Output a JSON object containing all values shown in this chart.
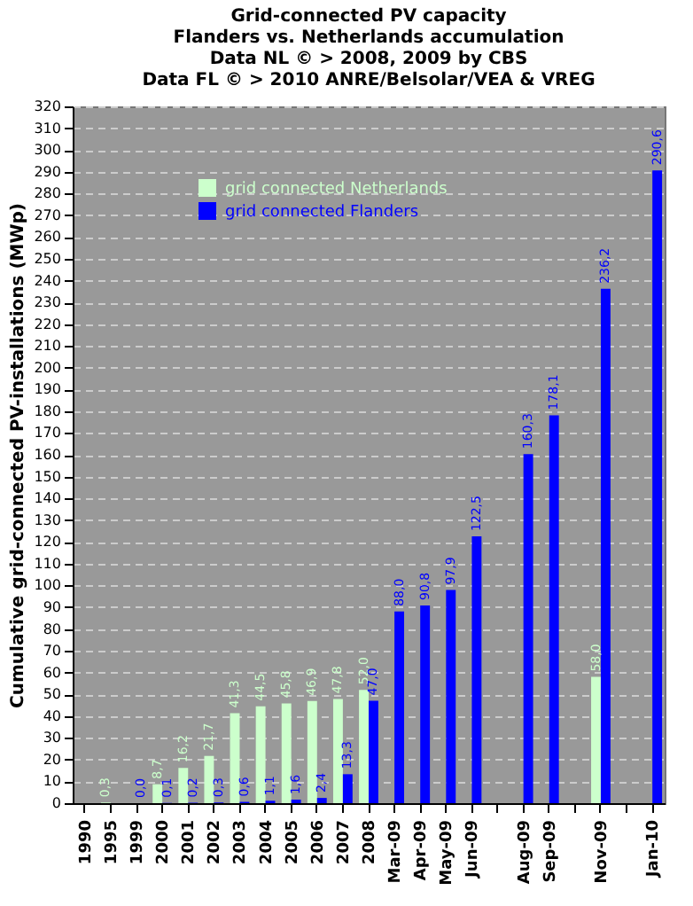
{
  "chart_data": {
    "type": "bar",
    "title": [
      "Grid-connected PV capacity",
      "Flanders vs. Netherlands accumulation",
      "Data NL © > 2008, 2009 by CBS",
      "Data FL © > 2010 ANRE/Belsolar/VEA & VREG"
    ],
    "ylabel": "Cumulative grid-connected PV-installations (MWp)",
    "categories": [
      "1990",
      "1995",
      "1999",
      "2000",
      "2001",
      "2002",
      "2003",
      "2004",
      "2005",
      "2006",
      "2007",
      "2008",
      "Mar-09",
      "Apr-09",
      "May-09",
      "Jun-09",
      null,
      "Aug-09",
      "Sep-09",
      null,
      "Nov-09",
      null,
      "Jan-10"
    ],
    "series": [
      {
        "name": "grid connected Netherlands",
        "color": "#ccffcc",
        "values": [
          null,
          0.3,
          null,
          8.7,
          16.2,
          21.7,
          41.3,
          44.5,
          45.8,
          46.9,
          47.8,
          52.0,
          null,
          null,
          null,
          null,
          null,
          null,
          null,
          null,
          58.0,
          null,
          null
        ],
        "value_labels": [
          null,
          "0,3",
          null,
          "8,7",
          "16,2",
          "21,7",
          "41,3",
          "44,5",
          "45,8",
          "46,9",
          "47,8",
          "52,0",
          null,
          null,
          null,
          null,
          null,
          null,
          null,
          null,
          "58,0",
          null,
          null
        ]
      },
      {
        "name": "grid connected Flanders",
        "color": "#0000ff",
        "values": [
          null,
          null,
          0.0,
          0.1,
          0.2,
          0.3,
          0.6,
          1.1,
          1.6,
          2.4,
          13.3,
          47.0,
          88.0,
          90.8,
          97.9,
          122.5,
          null,
          160.3,
          178.1,
          null,
          236.2,
          null,
          290.6
        ],
        "value_labels": [
          null,
          null,
          "0,0",
          "0,1",
          "0,2",
          "0,3",
          "0,6",
          "1,1",
          "1,6",
          "2,4",
          "13,3",
          "47,0",
          "88,0",
          "90,8",
          "97,9",
          "122,5",
          null,
          "160,3",
          "178,1",
          null,
          "236,2",
          null,
          "290,6"
        ]
      }
    ],
    "ylim": [
      0,
      320
    ],
    "yticks": [
      0,
      10,
      20,
      30,
      40,
      50,
      60,
      70,
      80,
      90,
      100,
      110,
      120,
      130,
      140,
      150,
      160,
      170,
      180,
      190,
      200,
      210,
      220,
      230,
      240,
      250,
      260,
      270,
      280,
      290,
      300,
      310,
      320
    ],
    "grid": "y",
    "legend": "top left"
  }
}
